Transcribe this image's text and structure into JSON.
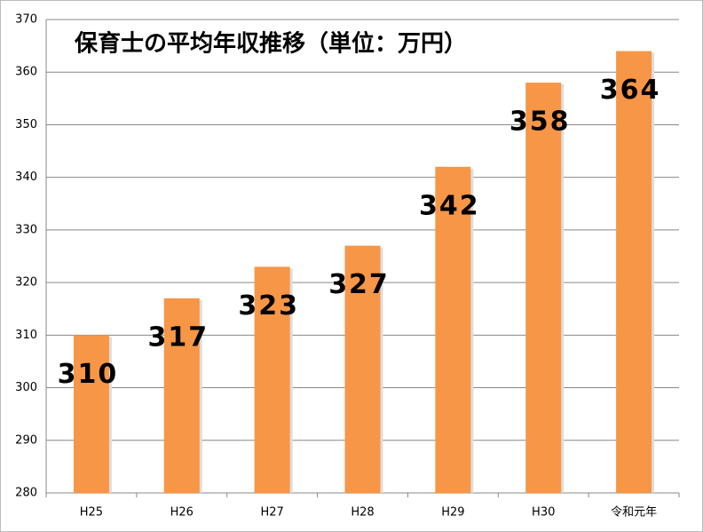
{
  "chart_data": {
    "type": "bar",
    "title": "保育士の平均年収推移（単位：万円）",
    "categories": [
      "H25",
      "H26",
      "H27",
      "H28",
      "H29",
      "H30",
      "令和元年"
    ],
    "values": [
      310,
      317,
      323,
      327,
      342,
      358,
      364
    ],
    "color": "#f79646",
    "ylim": [
      280,
      370
    ],
    "yticks": [
      280,
      290,
      300,
      310,
      320,
      330,
      340,
      350,
      360,
      370
    ],
    "grid": true
  }
}
